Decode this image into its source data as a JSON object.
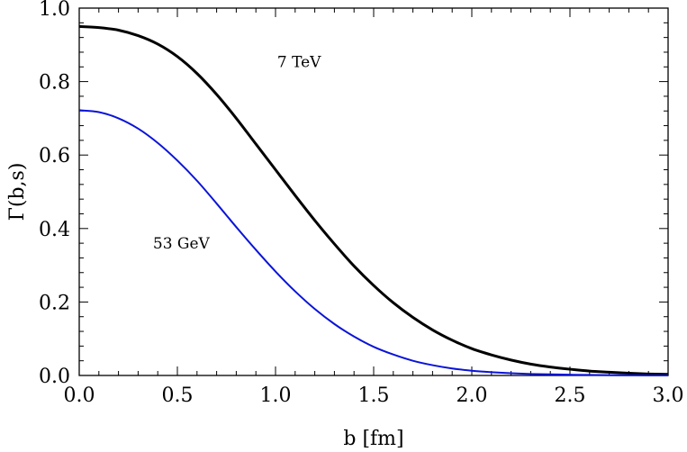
{
  "chart_data": {
    "type": "line",
    "xlabel": "b  [fm]",
    "ylabel": "Γ(b,s)",
    "xlim": [
      0.0,
      3.0
    ],
    "ylim": [
      0.0,
      1.0
    ],
    "xticks": [
      "0.0",
      "0.5",
      "1.0",
      "1.5",
      "2.0",
      "2.5",
      "3.0"
    ],
    "yticks": [
      "0.0",
      "0.2",
      "0.4",
      "0.6",
      "0.8",
      "1.0"
    ],
    "grid": false,
    "series": [
      {
        "name": "7 TeV",
        "color": "#000000",
        "x": [
          0.0,
          0.1,
          0.2,
          0.3,
          0.4,
          0.5,
          0.6,
          0.7,
          0.8,
          0.9,
          1.0,
          1.1,
          1.2,
          1.3,
          1.4,
          1.5,
          1.6,
          1.7,
          1.8,
          1.9,
          2.0,
          2.1,
          2.2,
          2.3,
          2.4,
          2.5,
          2.6,
          2.7,
          2.8,
          2.9,
          3.0
        ],
        "y": [
          0.95,
          0.947,
          0.94,
          0.925,
          0.902,
          0.868,
          0.822,
          0.765,
          0.7,
          0.63,
          0.56,
          0.49,
          0.422,
          0.358,
          0.298,
          0.245,
          0.198,
          0.158,
          0.124,
          0.096,
          0.073,
          0.056,
          0.042,
          0.031,
          0.023,
          0.017,
          0.012,
          0.009,
          0.006,
          0.004,
          0.003
        ]
      },
      {
        "name": "53 GeV",
        "color": "#0a14d8",
        "x": [
          0.0,
          0.1,
          0.2,
          0.3,
          0.4,
          0.5,
          0.6,
          0.7,
          0.8,
          0.9,
          1.0,
          1.1,
          1.2,
          1.3,
          1.4,
          1.5,
          1.6,
          1.7,
          1.8,
          1.9,
          2.0,
          2.1,
          2.2,
          2.3,
          2.4,
          2.5,
          2.6,
          2.7,
          2.8,
          2.9,
          3.0
        ],
        "y": [
          0.722,
          0.717,
          0.7,
          0.672,
          0.633,
          0.585,
          0.53,
          0.468,
          0.404,
          0.342,
          0.283,
          0.229,
          0.181,
          0.14,
          0.106,
          0.078,
          0.057,
          0.04,
          0.028,
          0.019,
          0.013,
          0.009,
          0.006,
          0.004,
          0.003,
          0.002,
          0.0015,
          0.001,
          0.0007,
          0.0004,
          0.0002
        ]
      }
    ],
    "annotations": [
      {
        "text": "7 TeV",
        "x": 1.12,
        "y": 0.84
      },
      {
        "text": "53 GeV",
        "x": 0.52,
        "y": 0.345
      }
    ]
  }
}
